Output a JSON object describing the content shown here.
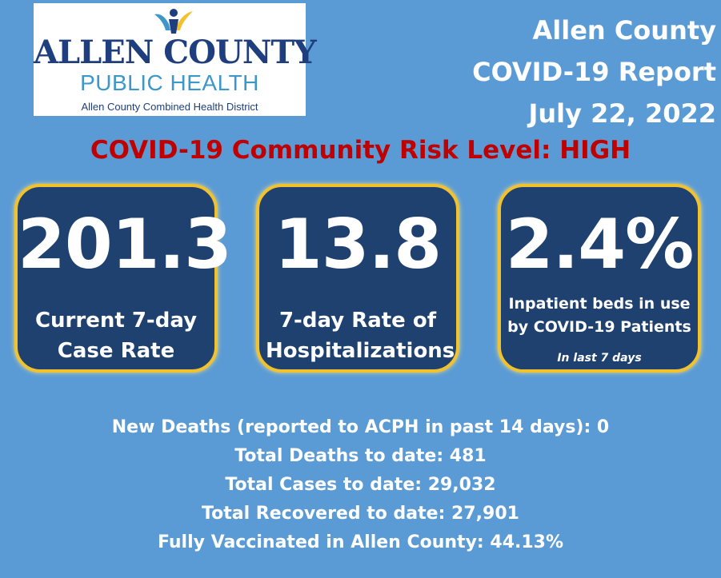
{
  "logo": {
    "name": "ALLEN COUNTY",
    "subtitle": "PUBLIC HEALTH",
    "district": "Allen County Combined Health District"
  },
  "header": {
    "line1": "Allen County",
    "line2": "COVID-19 Report",
    "line3": "July 22, 2022"
  },
  "risk_level": "COVID-19 Community Risk Level: HIGH",
  "cards": [
    {
      "value": "201.3",
      "label_line1": "Current 7-day",
      "label_line2": "Case Rate"
    },
    {
      "value": "13.8",
      "label_line1": "7-day Rate of",
      "label_line2": "Hospitalizations"
    },
    {
      "value": "2.4%",
      "label_line1": "Inpatient beds in use",
      "label_line2": "by COVID-19 Patients",
      "note": "In last  7 days"
    }
  ],
  "stats": [
    "New Deaths (reported to ACPH in past 14 days): 0",
    "Total Deaths to date: 481",
    "Total Cases to date: 29,032",
    "Total Recovered to date: 27,901",
    "Fully Vaccinated in Allen County: 44.13%"
  ],
  "colors": {
    "background": "#5b9bd5",
    "card_fill": "#1e4170",
    "card_border": "#f2c12e",
    "risk_text": "#c00000",
    "logo_navy": "#1f3e7e",
    "logo_blue": "#3d97c9"
  }
}
